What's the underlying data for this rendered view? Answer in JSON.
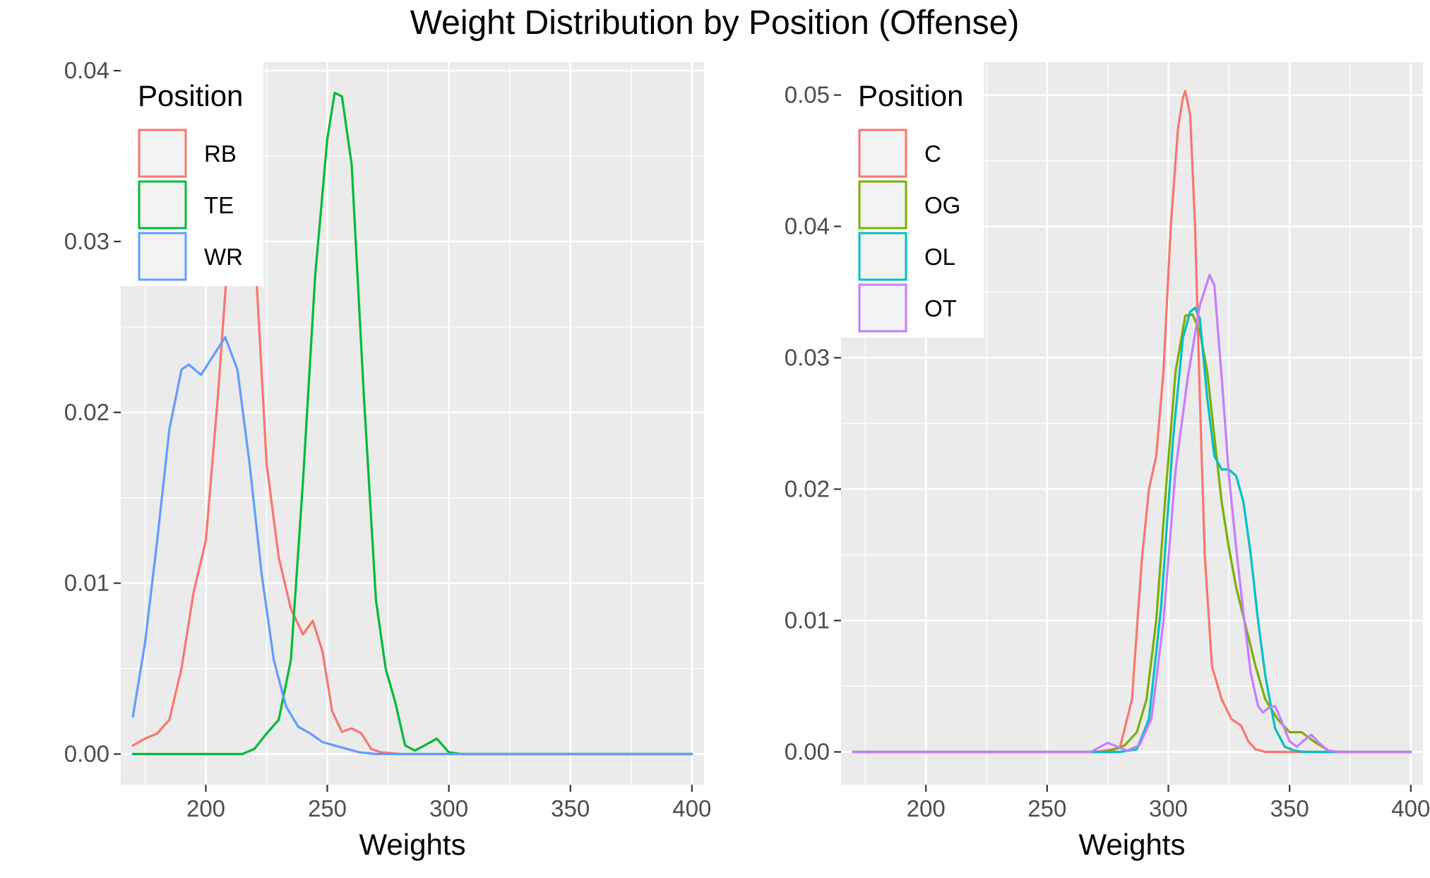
{
  "title": "Weight Distribution by Position (Offense)",
  "chart_data": [
    {
      "type": "line",
      "panel": "left",
      "xlabel": "Weights",
      "ylabel": "",
      "xlim": [
        165,
        405
      ],
      "ylim": [
        -0.0018,
        0.0405
      ],
      "x_ticks": [
        200,
        250,
        300,
        350,
        400
      ],
      "x_tick_labels": [
        "200",
        "250",
        "300",
        "350",
        "400"
      ],
      "y_ticks": [
        0,
        0.01,
        0.02,
        0.03,
        0.04
      ],
      "y_tick_labels": [
        "0.00",
        "0.01",
        "0.02",
        "0.03",
        "0.04"
      ],
      "grid": true,
      "legend": {
        "title": "Position",
        "position": "top-left"
      },
      "series": [
        {
          "name": "RB",
          "color": "#F8766D",
          "x": [
            170,
            175,
            180,
            185,
            190,
            195,
            200,
            205,
            210,
            215,
            220,
            225,
            230,
            235,
            240,
            244,
            248,
            252,
            256,
            260,
            264,
            268,
            272,
            280,
            300,
            350,
            400
          ],
          "y": [
            0.0005,
            0.0009,
            0.0012,
            0.002,
            0.005,
            0.0095,
            0.0125,
            0.021,
            0.031,
            0.034,
            0.03,
            0.017,
            0.0115,
            0.0085,
            0.007,
            0.0078,
            0.006,
            0.0025,
            0.0013,
            0.0015,
            0.0012,
            0.0003,
            0.0001,
            0.0,
            0.0,
            0.0,
            0.0
          ]
        },
        {
          "name": "TE",
          "color": "#00BA38",
          "x": [
            170,
            200,
            215,
            220,
            225,
            230,
            235,
            240,
            245,
            250,
            253,
            256,
            260,
            265,
            270,
            274,
            278,
            282,
            286,
            290,
            295,
            300,
            305,
            350,
            400
          ],
          "y": [
            0.0,
            0.0,
            0.0,
            0.0003,
            0.0012,
            0.002,
            0.0055,
            0.016,
            0.028,
            0.036,
            0.0387,
            0.0385,
            0.0345,
            0.021,
            0.009,
            0.005,
            0.003,
            0.0005,
            0.0002,
            0.0005,
            0.0009,
            0.0001,
            0.0,
            0.0,
            0.0
          ]
        },
        {
          "name": "WR",
          "color": "#619CFF",
          "x": [
            170,
            175,
            180,
            185,
            190,
            193,
            198,
            203,
            208,
            213,
            218,
            223,
            228,
            233,
            238,
            243,
            248,
            253,
            258,
            263,
            270,
            280,
            300,
            350,
            400
          ],
          "y": [
            0.0022,
            0.0065,
            0.0125,
            0.019,
            0.0225,
            0.0228,
            0.0222,
            0.0233,
            0.0244,
            0.0225,
            0.017,
            0.0105,
            0.0055,
            0.0028,
            0.0016,
            0.0012,
            0.0007,
            0.0005,
            0.0003,
            0.0001,
            0.0,
            0.0,
            0.0,
            0.0,
            0.0
          ]
        }
      ]
    },
    {
      "type": "line",
      "panel": "right",
      "xlabel": "Weights",
      "ylabel": "",
      "xlim": [
        165,
        405
      ],
      "ylim": [
        -0.0025,
        0.0525
      ],
      "x_ticks": [
        200,
        250,
        300,
        350,
        400
      ],
      "x_tick_labels": [
        "200",
        "250",
        "300",
        "350",
        "400"
      ],
      "y_ticks": [
        0,
        0.01,
        0.02,
        0.03,
        0.04,
        0.05
      ],
      "y_tick_labels": [
        "0.00",
        "0.01",
        "0.02",
        "0.03",
        "0.04",
        "0.05"
      ],
      "grid": true,
      "legend": {
        "title": "Position",
        "position": "top-left"
      },
      "series": [
        {
          "name": "C",
          "color": "#F8766D",
          "x": [
            170,
            270,
            280,
            285,
            289,
            292,
            295,
            298,
            301,
            304,
            306,
            307,
            309,
            311,
            313,
            315,
            318,
            322,
            326,
            330,
            333,
            336,
            340,
            350,
            400
          ],
          "y": [
            0.0,
            0.0,
            0.0003,
            0.004,
            0.0145,
            0.02,
            0.0225,
            0.029,
            0.04,
            0.0475,
            0.0498,
            0.0503,
            0.0485,
            0.04,
            0.027,
            0.015,
            0.0065,
            0.004,
            0.0025,
            0.002,
            0.0008,
            0.0002,
            0.0,
            0.0,
            0.0
          ]
        },
        {
          "name": "OG",
          "color": "#7CAE00",
          "x": [
            170,
            275,
            282,
            287,
            291,
            295,
            299,
            303,
            307,
            310,
            313,
            316,
            319,
            322,
            325,
            328,
            332,
            336,
            340,
            345,
            350,
            355,
            360,
            366,
            370,
            400
          ],
          "y": [
            0.0,
            0.0,
            0.0005,
            0.0015,
            0.004,
            0.01,
            0.02,
            0.029,
            0.0332,
            0.0333,
            0.032,
            0.029,
            0.024,
            0.019,
            0.0155,
            0.0125,
            0.0095,
            0.0065,
            0.004,
            0.0025,
            0.0015,
            0.0015,
            0.0008,
            0.0001,
            0.0,
            0.0
          ]
        },
        {
          "name": "OL",
          "color": "#00BFC4",
          "x": [
            170,
            280,
            287,
            292,
            297,
            302,
            306,
            309,
            311,
            313,
            316,
            319,
            322,
            325,
            328,
            331,
            334,
            337,
            340,
            344,
            348,
            352,
            356,
            400
          ],
          "y": [
            0.0,
            0.0,
            0.0002,
            0.0025,
            0.011,
            0.024,
            0.0315,
            0.0335,
            0.0338,
            0.033,
            0.027,
            0.0225,
            0.0215,
            0.0215,
            0.021,
            0.019,
            0.015,
            0.01,
            0.0058,
            0.0018,
            0.0004,
            0.0001,
            0.0,
            0.0
          ]
        },
        {
          "name": "OT",
          "color": "#C77CFF",
          "x": [
            170,
            268,
            272,
            275,
            279,
            283,
            288,
            293,
            298,
            303,
            308,
            313,
            317,
            319,
            322,
            325,
            328,
            331,
            334,
            337,
            339,
            341,
            344,
            347,
            350,
            353,
            356,
            359,
            362,
            366,
            370,
            400
          ],
          "y": [
            0.0,
            0.0,
            0.0004,
            0.0007,
            0.0004,
            0.0001,
            0.0005,
            0.0025,
            0.01,
            0.0215,
            0.0285,
            0.034,
            0.0363,
            0.0355,
            0.0285,
            0.021,
            0.0155,
            0.0105,
            0.006,
            0.0035,
            0.003,
            0.0033,
            0.0035,
            0.0022,
            0.0008,
            0.0004,
            0.0009,
            0.0013,
            0.0007,
            0.0001,
            0.0,
            0.0
          ]
        }
      ]
    }
  ]
}
